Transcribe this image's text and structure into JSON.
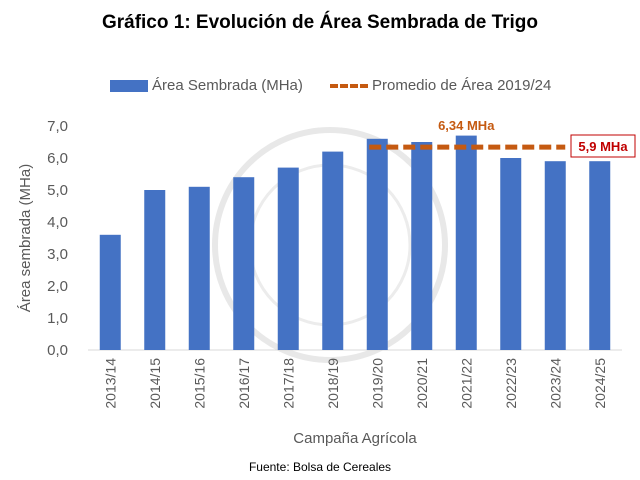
{
  "chart_data": {
    "type": "bar",
    "title": "Gráfico 1: Evolución de Área Sembrada de Trigo",
    "xlabel": "Campaña Agrícola",
    "ylabel": "Área sembrada (MHa)",
    "ylim": [
      0,
      7
    ],
    "yticks": [
      "0,0",
      "1,0",
      "2,0",
      "3,0",
      "4,0",
      "5,0",
      "6,0",
      "7,0"
    ],
    "categories": [
      "2013/14",
      "2014/15",
      "2015/16",
      "2016/17",
      "2017/18",
      "2018/19",
      "2019/20",
      "2020/21",
      "2021/22",
      "2022/23",
      "2023/24",
      "2024/25"
    ],
    "series": [
      {
        "name": "Área Sembrada (MHa)",
        "color": "#4472C4",
        "values": [
          3.6,
          5.0,
          5.1,
          5.4,
          5.7,
          6.2,
          6.6,
          6.5,
          6.7,
          6.0,
          5.9,
          5.9
        ]
      },
      {
        "name": "Promedio de Área 2019/24",
        "color": "#C55A11",
        "type": "dashed-line",
        "value": 6.34,
        "from": "2019/20",
        "to": "2023/24"
      }
    ],
    "annotations": [
      {
        "text": "6,34 MHa",
        "category": "2021/22",
        "color": "#C55A11"
      },
      {
        "text": "5,9 MHa",
        "category": "2024/25",
        "color": "#C00000",
        "boxed": true
      }
    ],
    "legend_position": "top",
    "grid": false
  },
  "source": "Fuente: Bolsa de Cereales"
}
